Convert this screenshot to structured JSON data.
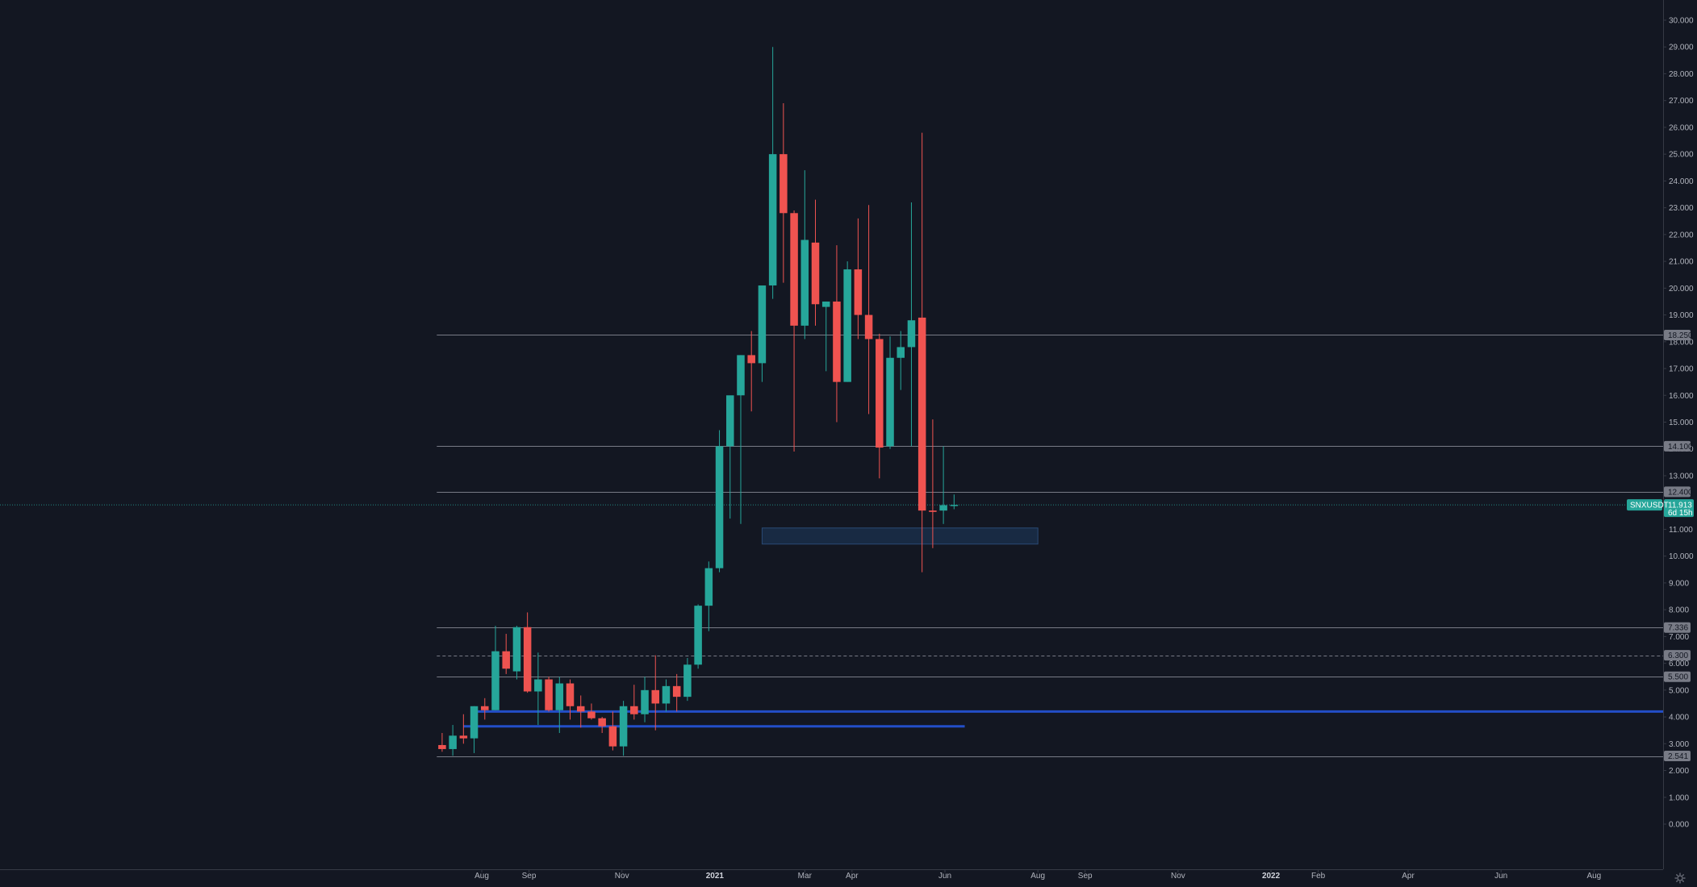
{
  "chart_data": {
    "type": "candlestick",
    "symbol": "SNXUSDT",
    "interval": "weekly",
    "y_axis": {
      "min": 0,
      "max": 30,
      "ticks": [
        "0.000",
        "1.000",
        "2.000",
        "3.000",
        "4.000",
        "5.000",
        "6.000",
        "7.000",
        "8.000",
        "9.000",
        "10.000",
        "11.000",
        "12.000",
        "13.000",
        "14.000",
        "15.000",
        "16.000",
        "17.000",
        "18.000",
        "19.000",
        "20.000",
        "21.000",
        "22.000",
        "23.000",
        "24.000",
        "25.000",
        "26.000",
        "27.000",
        "28.000",
        "29.000",
        "30.000"
      ]
    },
    "x_axis": {
      "ticks": [
        {
          "label": "Aug",
          "date": "2020-08-01"
        },
        {
          "label": "Sep",
          "date": "2020-09-01"
        },
        {
          "label": "Nov",
          "date": "2020-11-01"
        },
        {
          "label": "2021",
          "date": "2021-01-01",
          "bold": true
        },
        {
          "label": "Mar",
          "date": "2021-03-01"
        },
        {
          "label": "Apr",
          "date": "2021-04-01"
        },
        {
          "label": "Jun",
          "date": "2021-06-01"
        },
        {
          "label": "Aug",
          "date": "2021-08-01"
        },
        {
          "label": "Sep",
          "date": "2021-09-01"
        },
        {
          "label": "Nov",
          "date": "2021-11-01"
        },
        {
          "label": "2022",
          "date": "2022-01-01",
          "bold": true
        },
        {
          "label": "Feb",
          "date": "2022-02-01"
        },
        {
          "label": "Apr",
          "date": "2022-04-01"
        },
        {
          "label": "Jun",
          "date": "2022-06-01"
        },
        {
          "label": "Aug",
          "date": "2022-08-01"
        }
      ]
    },
    "candles": [
      {
        "t": "2020-07-06",
        "o": 2.95,
        "h": 3.4,
        "l": 2.7,
        "c": 2.8
      },
      {
        "t": "2020-07-13",
        "o": 2.8,
        "h": 3.7,
        "l": 2.55,
        "c": 3.3
      },
      {
        "t": "2020-07-20",
        "o": 3.3,
        "h": 4.1,
        "l": 3.0,
        "c": 3.2
      },
      {
        "t": "2020-07-27",
        "o": 3.2,
        "h": 4.4,
        "l": 2.65,
        "c": 4.4
      },
      {
        "t": "2020-08-03",
        "o": 4.4,
        "h": 4.7,
        "l": 3.9,
        "c": 4.25
      },
      {
        "t": "2020-08-10",
        "o": 4.25,
        "h": 7.4,
        "l": 4.25,
        "c": 6.45
      },
      {
        "t": "2020-08-17",
        "o": 6.45,
        "h": 7.1,
        "l": 5.6,
        "c": 5.8
      },
      {
        "t": "2020-08-24",
        "o": 5.7,
        "h": 7.4,
        "l": 5.4,
        "c": 7.35
      },
      {
        "t": "2020-08-31",
        "o": 7.35,
        "h": 7.9,
        "l": 4.9,
        "c": 4.95
      },
      {
        "t": "2020-09-07",
        "o": 4.95,
        "h": 6.4,
        "l": 3.7,
        "c": 5.4
      },
      {
        "t": "2020-09-14",
        "o": 5.4,
        "h": 5.5,
        "l": 4.2,
        "c": 4.25
      },
      {
        "t": "2020-09-21",
        "o": 4.25,
        "h": 5.5,
        "l": 3.4,
        "c": 5.25
      },
      {
        "t": "2020-09-28",
        "o": 5.25,
        "h": 5.4,
        "l": 3.9,
        "c": 4.4
      },
      {
        "t": "2020-10-05",
        "o": 4.4,
        "h": 4.8,
        "l": 3.6,
        "c": 4.2
      },
      {
        "t": "2020-10-12",
        "o": 4.2,
        "h": 4.5,
        "l": 3.9,
        "c": 3.95
      },
      {
        "t": "2020-10-19",
        "o": 3.95,
        "h": 4.0,
        "l": 3.4,
        "c": 3.65
      },
      {
        "t": "2020-10-26",
        "o": 3.65,
        "h": 4.2,
        "l": 2.75,
        "c": 2.9
      },
      {
        "t": "2020-11-02",
        "o": 2.9,
        "h": 4.6,
        "l": 2.55,
        "c": 4.4
      },
      {
        "t": "2020-11-09",
        "o": 4.4,
        "h": 5.2,
        "l": 3.9,
        "c": 4.1
      },
      {
        "t": "2020-11-16",
        "o": 4.1,
        "h": 5.5,
        "l": 3.8,
        "c": 5.0
      },
      {
        "t": "2020-11-23",
        "o": 5.0,
        "h": 6.3,
        "l": 3.5,
        "c": 4.5
      },
      {
        "t": "2020-11-30",
        "o": 4.5,
        "h": 5.4,
        "l": 4.2,
        "c": 5.15
      },
      {
        "t": "2020-12-07",
        "o": 5.15,
        "h": 5.6,
        "l": 4.2,
        "c": 4.75
      },
      {
        "t": "2020-12-14",
        "o": 4.75,
        "h": 6.2,
        "l": 4.6,
        "c": 5.95
      },
      {
        "t": "2020-12-21",
        "o": 5.95,
        "h": 8.2,
        "l": 5.8,
        "c": 8.15
      },
      {
        "t": "2020-12-28",
        "o": 8.15,
        "h": 9.8,
        "l": 7.2,
        "c": 9.55
      },
      {
        "t": "2021-01-04",
        "o": 9.55,
        "h": 14.7,
        "l": 9.4,
        "c": 14.1
      },
      {
        "t": "2021-01-11",
        "o": 14.1,
        "h": 15.9,
        "l": 11.4,
        "c": 16.0
      },
      {
        "t": "2021-01-18",
        "o": 16.0,
        "h": 17.5,
        "l": 11.2,
        "c": 17.5
      },
      {
        "t": "2021-01-25",
        "o": 17.5,
        "h": 18.4,
        "l": 15.4,
        "c": 17.2
      },
      {
        "t": "2021-02-01",
        "o": 17.2,
        "h": 19.9,
        "l": 16.5,
        "c": 20.1
      },
      {
        "t": "2021-02-08",
        "o": 20.1,
        "h": 29.0,
        "l": 19.6,
        "c": 25.0
      },
      {
        "t": "2021-02-15",
        "o": 25.0,
        "h": 26.9,
        "l": 20.2,
        "c": 22.8
      },
      {
        "t": "2021-02-22",
        "o": 22.8,
        "h": 22.9,
        "l": 13.9,
        "c": 18.6
      },
      {
        "t": "2021-03-01",
        "o": 18.6,
        "h": 24.4,
        "l": 18.1,
        "c": 21.8
      },
      {
        "t": "2021-03-08",
        "o": 21.7,
        "h": 23.3,
        "l": 18.6,
        "c": 19.4
      },
      {
        "t": "2021-03-15",
        "o": 19.3,
        "h": 19.5,
        "l": 16.9,
        "c": 19.5
      },
      {
        "t": "2021-03-22",
        "o": 19.5,
        "h": 21.6,
        "l": 15.0,
        "c": 16.5
      },
      {
        "t": "2021-03-29",
        "o": 16.5,
        "h": 21.0,
        "l": 16.5,
        "c": 20.7
      },
      {
        "t": "2021-04-05",
        "o": 20.7,
        "h": 22.6,
        "l": 18.1,
        "c": 19.0
      },
      {
        "t": "2021-04-12",
        "o": 19.0,
        "h": 23.1,
        "l": 15.3,
        "c": 18.1
      },
      {
        "t": "2021-04-19",
        "o": 18.1,
        "h": 18.3,
        "l": 12.9,
        "c": 14.05
      },
      {
        "t": "2021-04-26",
        "o": 14.1,
        "h": 18.2,
        "l": 14.0,
        "c": 17.4
      },
      {
        "t": "2021-05-03",
        "o": 17.4,
        "h": 18.4,
        "l": 16.2,
        "c": 17.8
      },
      {
        "t": "2021-05-10",
        "o": 17.8,
        "h": 23.2,
        "l": 14.1,
        "c": 18.8
      },
      {
        "t": "2021-05-17",
        "o": 18.9,
        "h": 25.8,
        "l": 9.4,
        "c": 11.7
      },
      {
        "t": "2021-05-24",
        "o": 11.7,
        "h": 15.1,
        "l": 10.3,
        "c": 11.65
      },
      {
        "t": "2021-05-31",
        "o": 11.7,
        "h": 14.1,
        "l": 11.2,
        "c": 11.9
      },
      {
        "t": "2021-06-07",
        "o": 11.91,
        "h": 12.3,
        "l": 11.75,
        "c": 11.913
      }
    ],
    "horizontal_levels": [
      {
        "value": 18.25,
        "label": "18.250",
        "style": "solid",
        "color": "#787b86"
      },
      {
        "value": 14.1,
        "label": "14.100",
        "style": "solid",
        "color": "#787b86"
      },
      {
        "value": 12.4,
        "label": "12.400",
        "style": "solid",
        "color": "#787b86"
      },
      {
        "value": 7.336,
        "label": "7.336",
        "style": "solid",
        "color": "#787b86"
      },
      {
        "value": 6.3,
        "label": "6.300",
        "style": "dashed",
        "color": "#787b86"
      },
      {
        "value": 5.5,
        "label": "5.500",
        "style": "solid",
        "color": "#787b86"
      },
      {
        "value": 2.541,
        "label": "2.541",
        "style": "solid",
        "color": "#787b86"
      }
    ],
    "support_lines": [
      {
        "value": 4.2,
        "start": "2020-07-27",
        "end": "extend",
        "color": "#2962ff"
      },
      {
        "value": 3.65,
        "start": "2020-07-20",
        "end": "2021-06-14",
        "color": "#2962ff"
      }
    ],
    "zone": {
      "top": 11.05,
      "bottom": 10.45,
      "start": "2021-02-01",
      "end": "2021-08-01",
      "color": "#1e3a5f"
    },
    "last_price": {
      "value": 11.913,
      "label": "11.913",
      "countdown": "6d 15h",
      "symbol_tag": "SNXUSDT",
      "color": "#26a69a"
    },
    "colors": {
      "up": "#26a69a",
      "down": "#ef5350",
      "background": "#131722",
      "axis_text": "#b2b5be",
      "level_line": "#787b86",
      "level_tag_bg": "#787b86"
    },
    "grid": false
  }
}
